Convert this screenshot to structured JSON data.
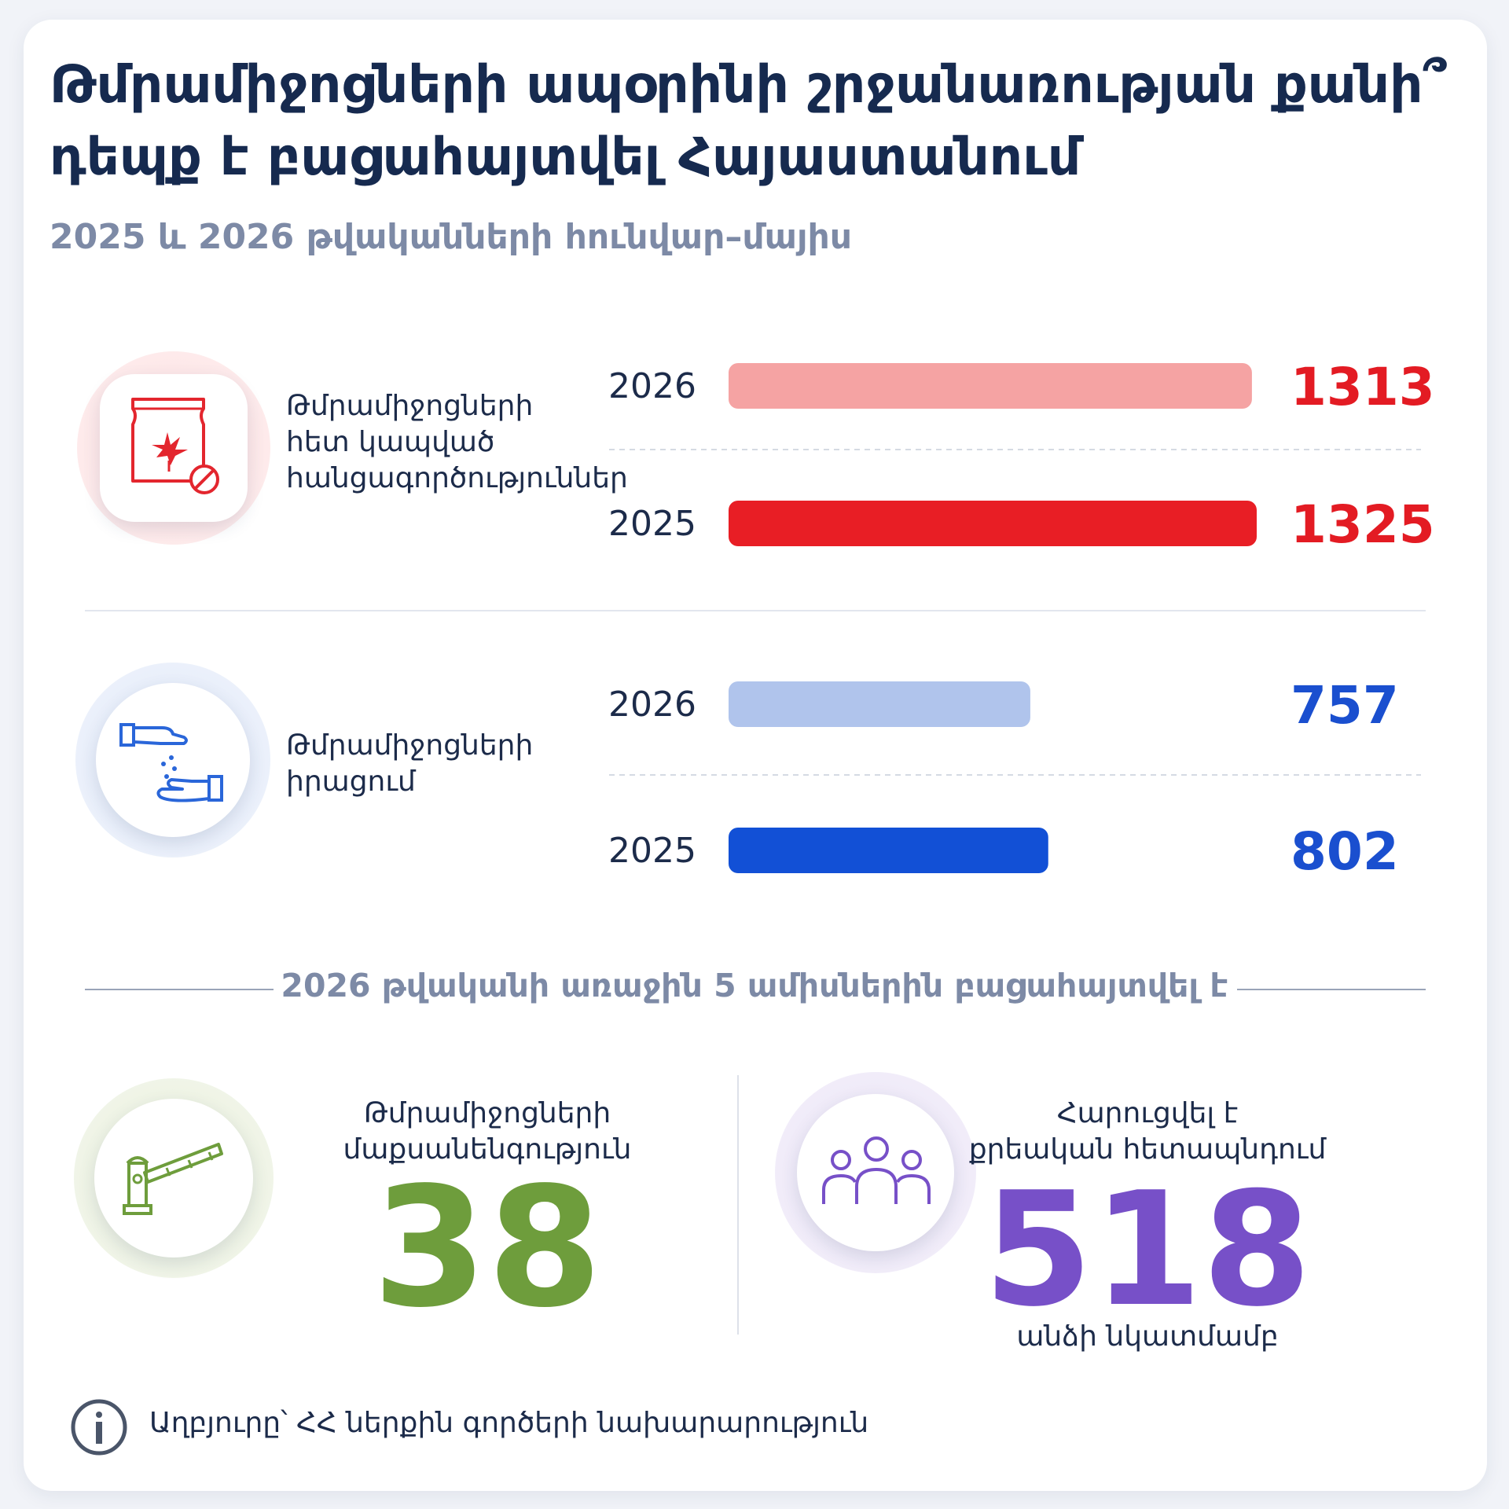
{
  "header": {
    "title": "Թմրամիջոցների ապօրինի շրջանառության քանի՞ դեպք է բացահայտվել Հայաստանում",
    "subtitle": "2025 և 2026 թվականների հունվար–մայիս"
  },
  "icons": {
    "crimes": "drug-bag-prohibited-icon",
    "sale": "hand-passing-pills-icon",
    "smuggling": "border-barrier-icon",
    "people": "group-of-people-icon",
    "info": "info-icon"
  },
  "colors": {
    "red_2025": "#e81e25",
    "red_2026": "#f5a3a3",
    "blue_2025": "#1250d6",
    "blue_2026": "#b0c4ec",
    "red_text": "#e31b23",
    "blue_text": "#1a4fcf",
    "green": "#6e9d3c",
    "purple": "#7750c8"
  },
  "chart_data": {
    "type": "bar",
    "orientation": "horizontal",
    "groups": [
      {
        "category": "Թմրամիջոցների հետ կապված հանցագործություններ",
        "bars": [
          {
            "year": "2026",
            "value": 1313,
            "label": "1313"
          },
          {
            "year": "2025",
            "value": 1325,
            "label": "1325"
          }
        ]
      },
      {
        "category": "Թմրամիջոցների իրացում",
        "bars": [
          {
            "year": "2026",
            "value": 757,
            "label": "757"
          },
          {
            "year": "2025",
            "value": 802,
            "label": "802"
          }
        ]
      }
    ]
  },
  "labels": {
    "crimes_line1": "Թմրամիջոցների",
    "crimes_line2": "հետ կապված",
    "crimes_line3": "հանցագործություններ",
    "sale_line1": "Թմրամիջոցների",
    "sale_line2": "իրացում"
  },
  "section": {
    "title": "2026 թվականի առաջին 5 ամիսներին բացահայտվել է"
  },
  "stats": {
    "smuggling_line1": "Թմրամիջոցների",
    "smuggling_line2": "մաքսանենգություն",
    "smuggling_value": "38",
    "people_line1": "Հարուցվել է",
    "people_line2": "քրեական հետապնդում",
    "people_value": "518",
    "people_note": "անձի նկատմամբ"
  },
  "footer": {
    "source": "Աղբյուրը՝ ՀՀ ներքին գործերի նախարարություն"
  }
}
